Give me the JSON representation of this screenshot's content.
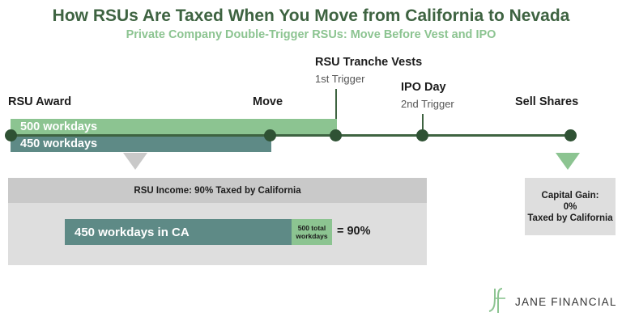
{
  "header": {
    "title": "How RSUs Are Taxed When You Move from California to Nevada",
    "subtitle": "Private Company Double-Trigger RSUs: Move Before Vest and IPO"
  },
  "timeline": {
    "events": [
      {
        "id": "award",
        "label": "RSU Award",
        "sublabel": ""
      },
      {
        "id": "move",
        "label": "Move",
        "sublabel": ""
      },
      {
        "id": "vest",
        "label": "RSU Tranche Vests",
        "sublabel": "1st Trigger"
      },
      {
        "id": "ipo",
        "label": "IPO Day",
        "sublabel": "2nd Trigger"
      },
      {
        "id": "sell",
        "label": "Sell Shares",
        "sublabel": ""
      }
    ],
    "bars": {
      "total": {
        "label": "500 workdays",
        "workdays": 500,
        "color": "#8cc491"
      },
      "california": {
        "label": "450 workdays",
        "workdays": 450,
        "color": "#5e8a86"
      }
    }
  },
  "income_box": {
    "header": "RSU Income: 90% Taxed by California",
    "numerator_label": "450 workdays in CA",
    "denominator_label": "500 total workdays",
    "result": "= 90%",
    "fraction": 0.9
  },
  "gain_box": {
    "line1": "Capital Gain:",
    "line2": "0%",
    "line3": "Taxed by California"
  },
  "brand": {
    "monogram": "JF",
    "name": "JANE FINANCIAL"
  },
  "colors": {
    "dark_green": "#3e6341",
    "light_green": "#8cc491",
    "teal": "#5e8a86",
    "gray_box": "#dedede"
  }
}
